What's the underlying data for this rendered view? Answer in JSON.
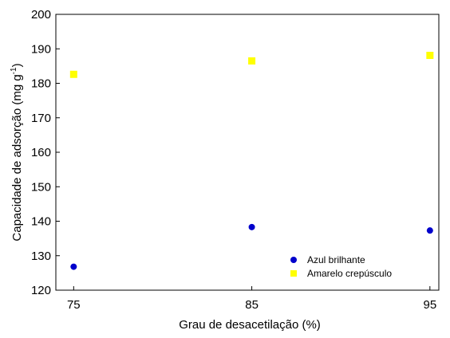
{
  "chart_data": {
    "type": "scatter",
    "title": "",
    "xlabel": "Grau de desacetilação (%)",
    "ylabel_main": "Capacidade de adsorção (mg g",
    "ylabel_sup": "-1",
    "ylabel_close": ")",
    "xlim": [
      74,
      95.5
    ],
    "ylim": [
      120,
      200
    ],
    "xticks": [
      "75",
      "85",
      "95"
    ],
    "xtick_values": [
      75,
      85,
      95
    ],
    "yticks": [
      "120",
      "130",
      "140",
      "150",
      "160",
      "170",
      "180",
      "190",
      "200"
    ],
    "ytick_values": [
      120,
      130,
      140,
      150,
      160,
      170,
      180,
      190,
      200
    ],
    "grid": false,
    "legend_position": "bottom-right",
    "series": [
      {
        "name": "Azul brilhante",
        "marker": "circle",
        "color": "#0000cc",
        "x": [
          75,
          85,
          95
        ],
        "y": [
          126.8,
          138.3,
          137.3
        ]
      },
      {
        "name": "Amarelo crepúsculo",
        "marker": "square",
        "color": "#ffff00",
        "x": [
          75,
          85,
          95
        ],
        "y": [
          182.6,
          186.5,
          188.1
        ]
      }
    ]
  }
}
